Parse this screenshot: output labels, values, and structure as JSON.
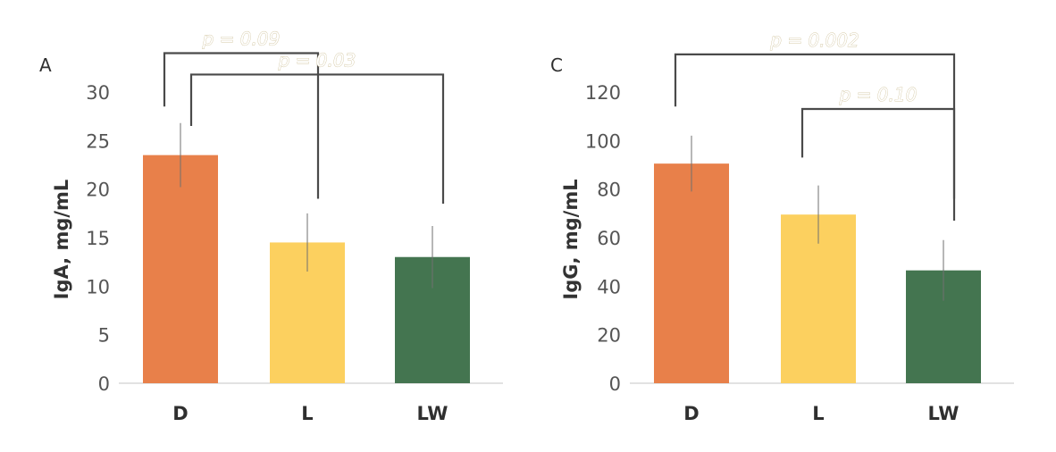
{
  "chart_data": [
    {
      "type": "bar",
      "panel": "A",
      "ylabel": "IgA, mg/mL",
      "categories": [
        "D",
        "L",
        "LW"
      ],
      "values": [
        23.5,
        14.5,
        13
      ],
      "errors": [
        3.3,
        3.0,
        3.2
      ],
      "ylim": [
        0,
        30
      ],
      "yticks": [
        0,
        5,
        10,
        15,
        20,
        25,
        30
      ],
      "colors": [
        "#e8804a",
        "#fcd05f",
        "#447550"
      ],
      "grid": false,
      "annotations": [
        {
          "text": "p = 0.09",
          "from": "D",
          "to": "L",
          "left_y": 28.5,
          "right_y": 19,
          "top_y": 34
        },
        {
          "text": "p = 0.03",
          "from": "D",
          "to": "LW",
          "left_y": 26.5,
          "right_y": 18.5,
          "top_y": 31.8
        }
      ]
    },
    {
      "type": "bar",
      "panel": "C",
      "ylabel": "IgG, mg/mL",
      "categories": [
        "D",
        "L",
        "LW"
      ],
      "values": [
        90.5,
        69.5,
        46.5
      ],
      "errors": [
        11.5,
        12.0,
        12.5
      ],
      "ylim": [
        0,
        120
      ],
      "yticks": [
        0,
        20,
        40,
        60,
        80,
        100,
        120
      ],
      "colors": [
        "#e8804a",
        "#fcd05f",
        "#447550"
      ],
      "grid": false,
      "annotations": [
        {
          "text": "p = 0.002",
          "from": "D",
          "to": "LW",
          "left_y": 114,
          "right_y": 76,
          "top_y": 135.5
        },
        {
          "text": "p = 0.10",
          "from": "L",
          "to": "LW",
          "left_y": 93,
          "right_y": 67,
          "top_y": 113
        }
      ]
    }
  ]
}
